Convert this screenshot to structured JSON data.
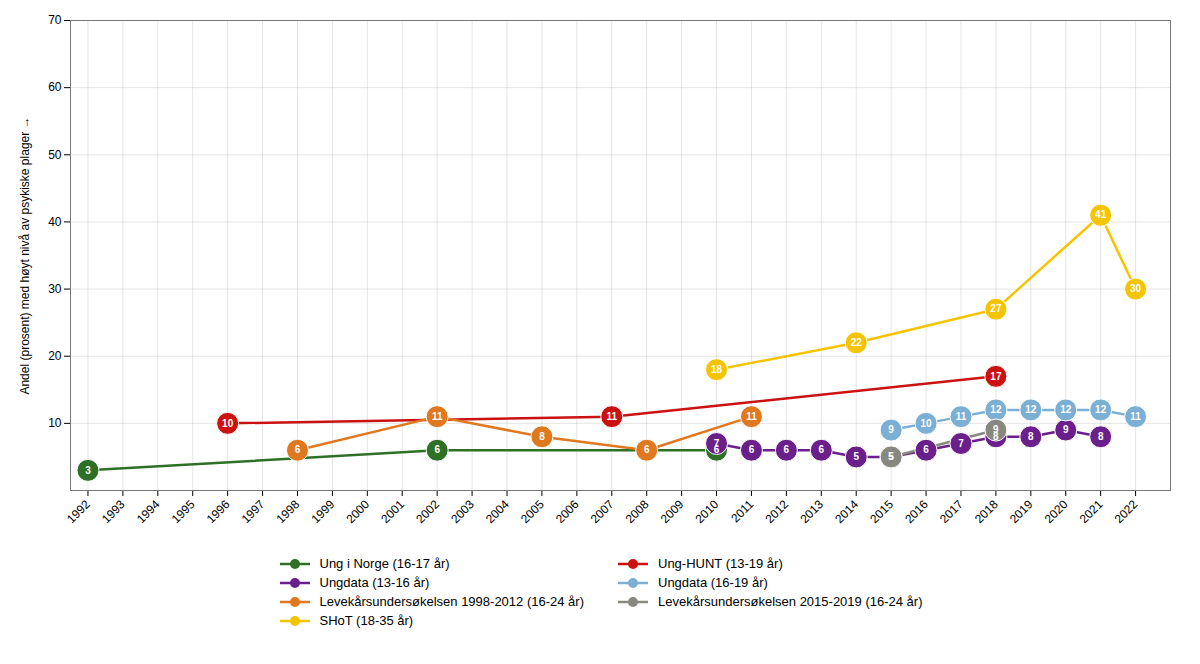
{
  "chart_data": {
    "type": "line",
    "ylabel": "Andel (prosent) med høyt nivå av psykiske plager",
    "series": [
      {
        "name": "Ung i Norge (16-17 år)",
        "color": "#2d7026",
        "x": [
          1992,
          2002,
          2010
        ],
        "values": [
          3,
          6,
          6
        ]
      },
      {
        "name": "Ung-HUNT (13-19 år)",
        "color": "#cc1111",
        "x": [
          1996,
          2007,
          2018
        ],
        "values": [
          10,
          11,
          17
        ]
      },
      {
        "name": "Ungdata (13-16 år)",
        "color": "#6a1f8a",
        "x": [
          2010,
          2011,
          2012,
          2013,
          2014,
          2015,
          2016,
          2017,
          2018,
          2019,
          2020,
          2021
        ],
        "values": [
          7,
          6,
          6,
          6,
          5,
          5,
          6,
          7,
          8,
          8,
          9,
          8
        ]
      },
      {
        "name": "Ungdata (16-19 år)",
        "color": "#7bafd4",
        "x": [
          2015,
          2016,
          2017,
          2018,
          2019,
          2020,
          2021,
          2022
        ],
        "values": [
          9,
          10,
          11,
          12,
          12,
          12,
          12,
          11
        ]
      },
      {
        "name": "Levekårsundersøkelsen 1998-2012 (16-24 år)",
        "color": "#e07820",
        "x": [
          1998,
          2002,
          2005,
          2008,
          2011
        ],
        "values": [
          6,
          11,
          8,
          6,
          11
        ]
      },
      {
        "name": "Levekårsundersøkelsen 2015-2019 (16-24 år)",
        "color": "#888880",
        "x": [
          2015,
          2018
        ],
        "values": [
          5,
          9
        ]
      },
      {
        "name": "SHoT (18-35 år)",
        "color": "#f5c400",
        "x": [
          2010,
          2014,
          2018,
          2021,
          2022
        ],
        "values": [
          18,
          22,
          27,
          41,
          30
        ]
      }
    ],
    "xlim": [
      1991.5,
      2023.0
    ],
    "ylim": [
      0,
      70
    ],
    "xticks": [
      1992,
      1993,
      1994,
      1995,
      1996,
      1997,
      1998,
      1999,
      2000,
      2001,
      2002,
      2003,
      2004,
      2005,
      2006,
      2007,
      2008,
      2009,
      2010,
      2011,
      2012,
      2013,
      2014,
      2015,
      2016,
      2017,
      2018,
      2019,
      2020,
      2021,
      2022
    ],
    "yticks": [
      10,
      20,
      30,
      40,
      50,
      60,
      70
    ],
    "grid": true,
    "legend": "bottom",
    "data_labels": true,
    "marker": "circle"
  }
}
